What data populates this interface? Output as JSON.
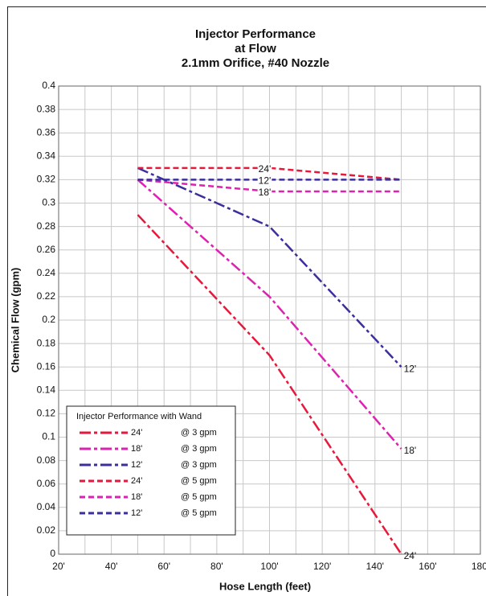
{
  "chart_data": {
    "type": "line",
    "title": [
      "Injector Performance",
      "at Flow",
      "2.1mm Orifice, #40 Nozzle"
    ],
    "x_label": "Hose Length (feet)",
    "y_label": "Chemical Flow (gpm)",
    "legend_title": "Injector Performance with Wand",
    "x": [
      50,
      100,
      150
    ],
    "series": [
      {
        "name": "24'",
        "flow": "@ 3 gpm",
        "color": "#e6193c",
        "dash": "dashdot",
        "values": [
          0.29,
          0.17,
          0.0
        ]
      },
      {
        "name": "18'",
        "flow": "@ 3 gpm",
        "color": "#dd22b0",
        "dash": "dashdot",
        "values": [
          0.32,
          0.22,
          0.09
        ]
      },
      {
        "name": "12'",
        "flow": "@ 3 gpm",
        "color": "#3b2f9e",
        "dash": "dashdot",
        "values": [
          0.33,
          0.28,
          0.16
        ]
      },
      {
        "name": "24'",
        "flow": "@ 5 gpm",
        "color": "#e6193c",
        "dash": "dash",
        "values": [
          0.33,
          0.33,
          0.32
        ]
      },
      {
        "name": "18'",
        "flow": "@ 5 gpm",
        "color": "#dd22b0",
        "dash": "dash",
        "values": [
          0.32,
          0.31,
          0.31
        ]
      },
      {
        "name": "12'",
        "flow": "@ 5 gpm",
        "color": "#3b2f9e",
        "dash": "dash",
        "values": [
          0.32,
          0.32,
          0.32
        ]
      }
    ],
    "xlim": [
      20,
      180
    ],
    "xticks": [
      {
        "value": 20,
        "label": "20'"
      },
      {
        "value": 40,
        "label": "40'"
      },
      {
        "value": 60,
        "label": "60'"
      },
      {
        "value": 80,
        "label": "80'"
      },
      {
        "value": 100,
        "label": "100'"
      },
      {
        "value": 120,
        "label": "120'"
      },
      {
        "value": 140,
        "label": "140'"
      },
      {
        "value": 160,
        "label": "160'"
      },
      {
        "value": 180,
        "label": "180'"
      }
    ],
    "xminor": [
      30,
      50,
      70,
      90,
      110,
      130,
      150,
      170
    ],
    "ylim": [
      0,
      0.4
    ],
    "yticks": [
      0,
      0.02,
      0.04,
      0.06,
      0.08,
      0.1,
      0.12,
      0.14,
      0.16,
      0.18,
      0.2,
      0.22,
      0.24,
      0.26,
      0.28,
      0.3,
      0.32,
      0.34,
      0.36,
      0.38,
      0.4
    ],
    "grid": true
  }
}
